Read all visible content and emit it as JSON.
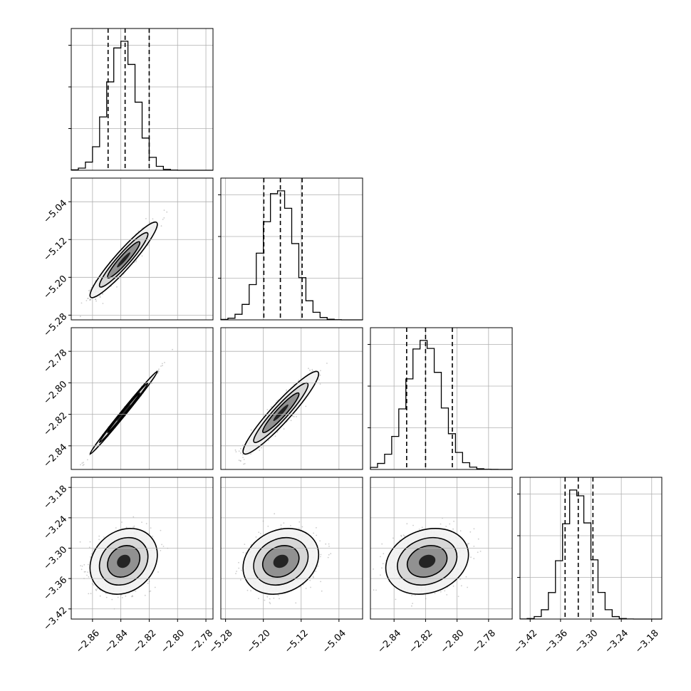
{
  "chart_data": {
    "type": "corner",
    "n_params": 4,
    "grid": true,
    "parameters": [
      {
        "index": 0,
        "range": [
          -2.875,
          -2.775
        ],
        "ticks": [
          -2.86,
          -2.84,
          -2.82,
          -2.8,
          -2.78
        ],
        "tick_labels": [
          "−2.86",
          "−2.84",
          "−2.82",
          "−2.80",
          "−2.78"
        ],
        "quantiles": [
          -2.849,
          -2.837,
          -2.82
        ],
        "mean": -2.838,
        "sd": 0.0095,
        "hist_peak_x": -2.839
      },
      {
        "index": 1,
        "range": [
          -5.29,
          -4.99
        ],
        "ticks": [
          -5.28,
          -5.2,
          -5.12,
          -5.04
        ],
        "tick_labels": [
          "−5.28",
          "−5.20",
          "−5.12",
          "−5.04"
        ],
        "quantiles": [
          -5.199,
          -5.164,
          -5.118
        ],
        "mean": -5.163,
        "sd": 0.032,
        "hist_peak_x": -5.168
      },
      {
        "index": 2,
        "range": [
          -2.855,
          -2.765
        ],
        "ticks": [
          -2.84,
          -2.82,
          -2.8,
          -2.78
        ],
        "tick_labels": [
          "−2.84",
          "−2.82",
          "−2.80",
          "−2.78"
        ],
        "quantiles": [
          -2.832,
          -2.82,
          -2.803
        ],
        "mean": -2.819,
        "sd": 0.0105,
        "hist_peak_x": -2.821
      },
      {
        "index": 3,
        "range": [
          -3.44,
          -3.16
        ],
        "ticks": [
          -3.42,
          -3.36,
          -3.3,
          -3.24,
          -3.18
        ],
        "tick_labels": [
          "−3.42",
          "−3.36",
          "−3.30",
          "−3.24",
          "−3.18"
        ],
        "quantiles": [
          -3.351,
          -3.325,
          -3.296
        ],
        "mean": -3.326,
        "sd": 0.026,
        "hist_peak_x": -3.328
      }
    ],
    "correlations": [
      [
        1.0,
        0.94,
        0.995,
        0.2
      ],
      [
        0.94,
        1.0,
        0.94,
        0.2
      ],
      [
        0.995,
        0.94,
        1.0,
        0.2
      ],
      [
        0.2,
        0.2,
        0.2,
        1.0
      ]
    ],
    "colors": {
      "line": "#000000",
      "grid": "#b0b0b0",
      "scatter": "#9a9a9a"
    }
  }
}
